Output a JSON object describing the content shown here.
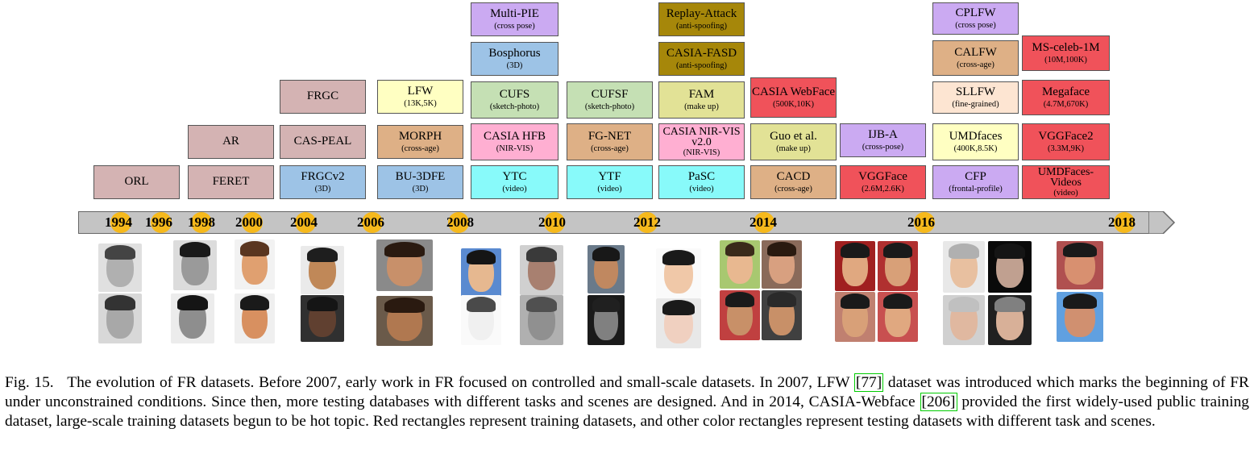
{
  "figure": {
    "timeline": {
      "years": [
        "1994",
        "1996",
        "1998",
        "2000",
        "2004",
        "2006",
        "2008",
        "2010",
        "2012",
        "2014",
        "2016",
        "2018"
      ],
      "marker_color": "#f6b91c",
      "bar_color": "#c4c4c4"
    },
    "datasets": [
      {
        "name": "ORL",
        "subtitle": "",
        "color": "#d4b3b3"
      },
      {
        "name": "AR",
        "subtitle": "",
        "color": "#d4b3b3"
      },
      {
        "name": "FERET",
        "subtitle": "",
        "color": "#d4b3b3"
      },
      {
        "name": "FRGC",
        "subtitle": "",
        "color": "#d4b3b3"
      },
      {
        "name": "CAS-PEAL",
        "subtitle": "",
        "color": "#d4b3b3"
      },
      {
        "name": "FRGCv2",
        "subtitle": "(3D)",
        "color": "#9dc3e6"
      },
      {
        "name": "LFW",
        "subtitle": "(13K,5K)",
        "color": "#ffffc2"
      },
      {
        "name": "MORPH",
        "subtitle": "(cross-age)",
        "color": "#deb086"
      },
      {
        "name": "BU-3DFE",
        "subtitle": "(3D)",
        "color": "#9dc3e6"
      },
      {
        "name": "Multi-PIE",
        "subtitle": "(cross pose)",
        "color": "#cbaaf2"
      },
      {
        "name": "Bosphorus",
        "subtitle": "(3D)",
        "color": "#9dc3e6"
      },
      {
        "name": "CUFS",
        "subtitle": "(sketch-photo)",
        "color": "#c5e0b4"
      },
      {
        "name": "CASIA HFB",
        "subtitle": "(NIR-VIS)",
        "color": "#ffafd2"
      },
      {
        "name": "YTC",
        "subtitle": "(video)",
        "color": "#88fafa"
      },
      {
        "name": "CUFSF",
        "subtitle": "(sketch-photo)",
        "color": "#c5e0b4"
      },
      {
        "name": "FG-NET",
        "subtitle": "(cross-age)",
        "color": "#deb086"
      },
      {
        "name": "YTF",
        "subtitle": "(video)",
        "color": "#88fafa"
      },
      {
        "name": "Replay-Attack",
        "subtitle": "(anti-spoofing)",
        "color": "#a6870a"
      },
      {
        "name": "CASIA-FASD",
        "subtitle": "(anti-spoofing)",
        "color": "#a6870a"
      },
      {
        "name": "FAM",
        "subtitle": "(make up)",
        "color": "#e2e296"
      },
      {
        "name": "CASIA NIR-VIS v2.0",
        "subtitle": "(NIR-VIS)",
        "color": "#ffafd2"
      },
      {
        "name": "PaSC",
        "subtitle": "(video)",
        "color": "#88fafa"
      },
      {
        "name": "CASIA WebFace",
        "subtitle": "(500K,10K)",
        "color": "#f0525a"
      },
      {
        "name": "Guo et al.",
        "subtitle": "(make up)",
        "color": "#e2e296"
      },
      {
        "name": "CACD",
        "subtitle": "(cross-age)",
        "color": "#deb086"
      },
      {
        "name": "IJB-A",
        "subtitle": "(cross-pose)",
        "color": "#cbaaf2"
      },
      {
        "name": "VGGFace",
        "subtitle": "(2.6M,2.6K)",
        "color": "#f0525a"
      },
      {
        "name": "CPLFW",
        "subtitle": "(cross pose)",
        "color": "#cbaaf2"
      },
      {
        "name": "CALFW",
        "subtitle": "(cross-age)",
        "color": "#deb086"
      },
      {
        "name": "SLLFW",
        "subtitle": "(fine-grained)",
        "color": "#fde5d2"
      },
      {
        "name": "UMDfaces",
        "subtitle": "(400K,8.5K)",
        "color": "#ffffc2"
      },
      {
        "name": "CFP",
        "subtitle": "(frontal-profile)",
        "color": "#cbaaf2"
      },
      {
        "name": "MS-celeb-1M",
        "subtitle": "(10M,100K)",
        "color": "#f0525a"
      },
      {
        "name": "Megaface",
        "subtitle": "(4.7M,670K)",
        "color": "#f0525a"
      },
      {
        "name": "VGGFace2",
        "subtitle": "(3.3M,9K)",
        "color": "#f0525a"
      },
      {
        "name": "UMDFaces-Videos",
        "subtitle": "(video)",
        "color": "#f0525a"
      }
    ],
    "faces": [
      {
        "skin": "#b0b0b0",
        "hair": "#444444",
        "bg": "#e0e0e0"
      },
      {
        "skin": "#a8a8a8",
        "hair": "#333333",
        "bg": "#d8d8d8"
      },
      {
        "skin": "#9a9a9a",
        "hair": "#1a1a1a",
        "bg": "#dcdcdc"
      },
      {
        "skin": "#8e8e8e",
        "hair": "#151515",
        "bg": "#ececec"
      },
      {
        "skin": "#e0a070",
        "hair": "#5a3620",
        "bg": "#f2f2f2"
      },
      {
        "skin": "#d89060",
        "hair": "#1a1a1a",
        "bg": "#efefef"
      },
      {
        "skin": "#c08858",
        "hair": "#1e1e1e",
        "bg": "#eaeaea"
      },
      {
        "skin": "#604030",
        "hair": "#151515",
        "bg": "#303030"
      },
      {
        "skin": "#c8906a",
        "hair": "#2a1a10",
        "bg": "#8a8a8a"
      },
      {
        "skin": "#b07850",
        "hair": "#2a1a10",
        "bg": "#6a5a4a"
      },
      {
        "skin": "#e6b890",
        "hair": "#151515",
        "bg": "#5a8ad0"
      },
      {
        "skin": "#f0f0f0",
        "hair": "#4a4a4a",
        "bg": "#fafafa"
      },
      {
        "skin": "#a88070",
        "hair": "#3a3a3a",
        "bg": "#d0d0d0"
      },
      {
        "skin": "#909090",
        "hair": "#505050",
        "bg": "#b0b0b0"
      },
      {
        "skin": "#c08860",
        "hair": "#181818",
        "bg": "#6a7a8a"
      },
      {
        "skin": "#808080",
        "hair": "#202020",
        "bg": "#1a1a1a"
      },
      {
        "skin": "#f0c8a8",
        "hair": "#1a1a1a",
        "bg": "#fafafa"
      },
      {
        "skin": "#f0d0c0",
        "hair": "#1a1a1a",
        "bg": "#e8e8e8"
      },
      {
        "skin": "#e8b890",
        "hair": "#3a2a1a",
        "bg": "#a8c870"
      },
      {
        "skin": "#d8a080",
        "hair": "#2a1a10",
        "bg": "#8a6a5a"
      },
      {
        "skin": "#c89068",
        "hair": "#1a1a1a",
        "bg": "#c04040"
      },
      {
        "skin": "#c89068",
        "hair": "#2a2a2a",
        "bg": "#404040"
      },
      {
        "skin": "#e0a880",
        "hair": "#1a1a1a",
        "bg": "#a02020"
      },
      {
        "skin": "#d8a078",
        "hair": "#1a1a1a",
        "bg": "#b03030"
      },
      {
        "skin": "#d8a078",
        "hair": "#1a1a1a",
        "bg": "#c08070"
      },
      {
        "skin": "#e0a880",
        "hair": "#1a1a1a",
        "bg": "#c85050"
      },
      {
        "skin": "#e8c0a0",
        "hair": "#b0b0b0",
        "bg": "#e8e8e8"
      },
      {
        "skin": "#c0a090",
        "hair": "#151515",
        "bg": "#0a0a0a"
      },
      {
        "skin": "#e0b8a0",
        "hair": "#c0c0c0",
        "bg": "#d0d0d0"
      },
      {
        "skin": "#d8b098",
        "hair": "#808080",
        "bg": "#202020"
      },
      {
        "skin": "#d89070",
        "hair": "#1a1a1a",
        "bg": "#b05050"
      },
      {
        "skin": "#d09070",
        "hair": "#1a1a1a",
        "bg": "#60a0e0"
      }
    ]
  },
  "caption": {
    "label": "Fig. 15.",
    "part1": "The evolution of FR datasets. Before 2007, early work in FR focused on controlled and small-scale datasets. In 2007, LFW ",
    "ref1": "[77]",
    "part2": " dataset was introduced which marks the beginning of FR under unconstrained conditions. Since then, more testing databases with different tasks and scenes are designed. And in 2014, CASIA-Webface ",
    "ref2": "[206]",
    "part3": " provided the first widely-used public training dataset, large-scale training datasets begun to be hot topic. Red rectangles represent training datasets, and other color rectangles represent testing datasets with different task and scenes."
  }
}
